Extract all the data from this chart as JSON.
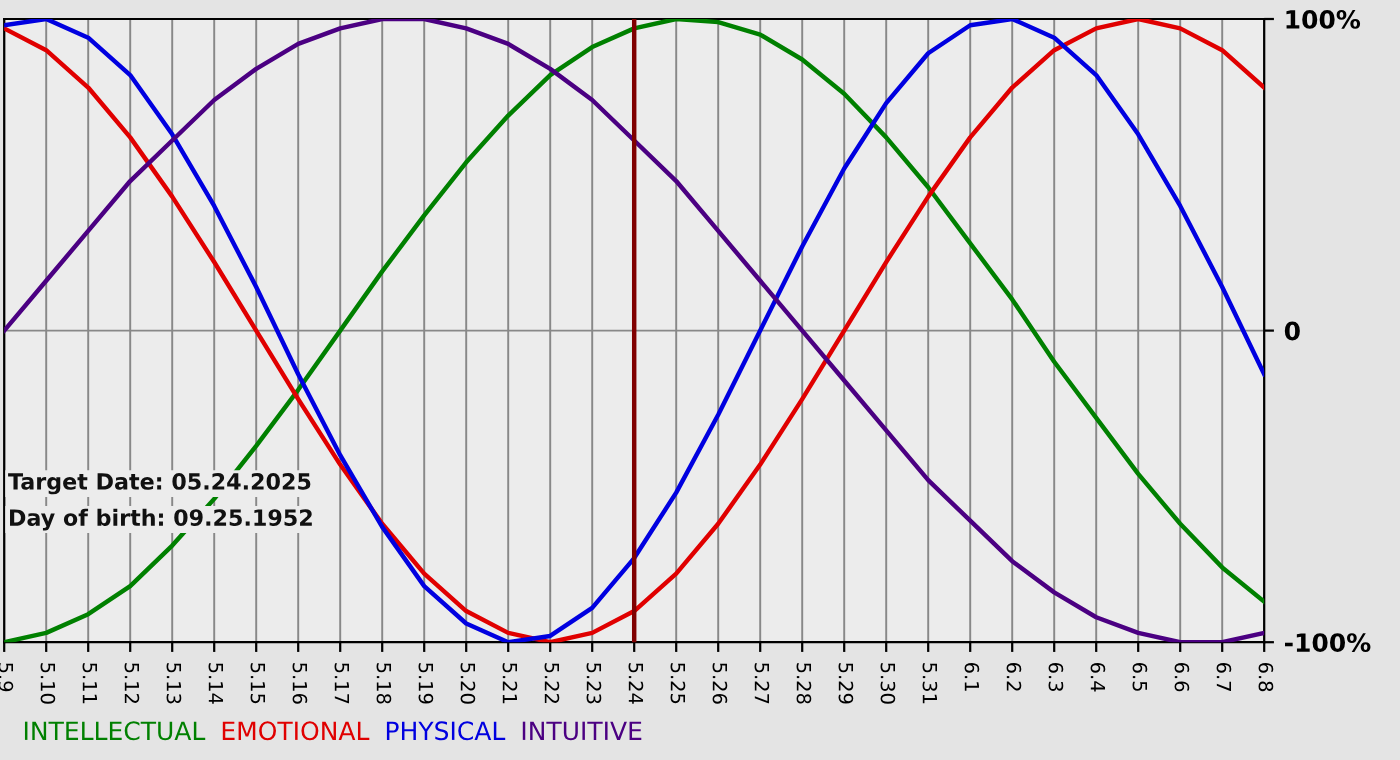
{
  "chart_data": {
    "type": "line",
    "categories": [
      "5.9",
      "5.10",
      "5.11",
      "5.12",
      "5.13",
      "5.14",
      "5.15",
      "5.16",
      "5.17",
      "5.18",
      "5.19",
      "5.20",
      "5.21",
      "5.22",
      "5.23",
      "5.24",
      "5.25",
      "5.26",
      "5.27",
      "5.28",
      "5.29",
      "5.30",
      "5.31",
      "6.1",
      "6.2",
      "6.3",
      "6.4",
      "6.5",
      "6.6",
      "6.7",
      "6.8"
    ],
    "series": [
      {
        "name": "INTELLECTUAL",
        "color": "#008000",
        "values": [
          -100,
          -97,
          -91,
          -82,
          -69,
          -54,
          -37,
          -19,
          0,
          19,
          37,
          54,
          69,
          82,
          91,
          97,
          100,
          99,
          95,
          87,
          76,
          62,
          46,
          28,
          10,
          -10,
          -28,
          -46,
          -62,
          -76,
          -87
        ]
      },
      {
        "name": "EMOTIONAL",
        "color": "#e00000",
        "values": [
          97,
          90,
          78,
          62,
          43,
          22,
          0,
          -22,
          -43,
          -62,
          -78,
          -90,
          -97,
          -100,
          -97,
          -90,
          -78,
          -62,
          -43,
          -22,
          0,
          22,
          43,
          62,
          78,
          90,
          97,
          100,
          97,
          90,
          78
        ]
      },
      {
        "name": "PHYSICAL",
        "color": "#0000e0",
        "values": [
          98,
          100,
          94,
          82,
          63,
          40,
          14,
          -14,
          -40,
          -63,
          -82,
          -94,
          -100,
          -98,
          -89,
          -73,
          -52,
          -27,
          0,
          27,
          52,
          73,
          89,
          98,
          100,
          94,
          82,
          63,
          40,
          14,
          -14
        ]
      },
      {
        "name": "INTUITIVE",
        "color": "#4b0082",
        "values": [
          0,
          16,
          32,
          48,
          61,
          74,
          84,
          92,
          97,
          100,
          100,
          97,
          92,
          84,
          74,
          61,
          48,
          32,
          16,
          0,
          -16,
          -32,
          -48,
          -61,
          -74,
          -84,
          -92,
          -97,
          -100,
          -100,
          -97
        ]
      }
    ],
    "ylim": [
      -100,
      100
    ],
    "yticks": [
      {
        "value": 100,
        "label": "100%"
      },
      0,
      {
        "value": -100,
        "label": "-100%"
      }
    ],
    "ref_lines": [
      {
        "axis": "x",
        "value": "5.24",
        "color": "#800000"
      }
    ],
    "annotations": [
      "Target Date: 05.24.2025",
      "Day of birth: 09.25.1952"
    ],
    "grid": true,
    "legend": "bottom left",
    "marker": "none",
    "line_style": "solid"
  }
}
